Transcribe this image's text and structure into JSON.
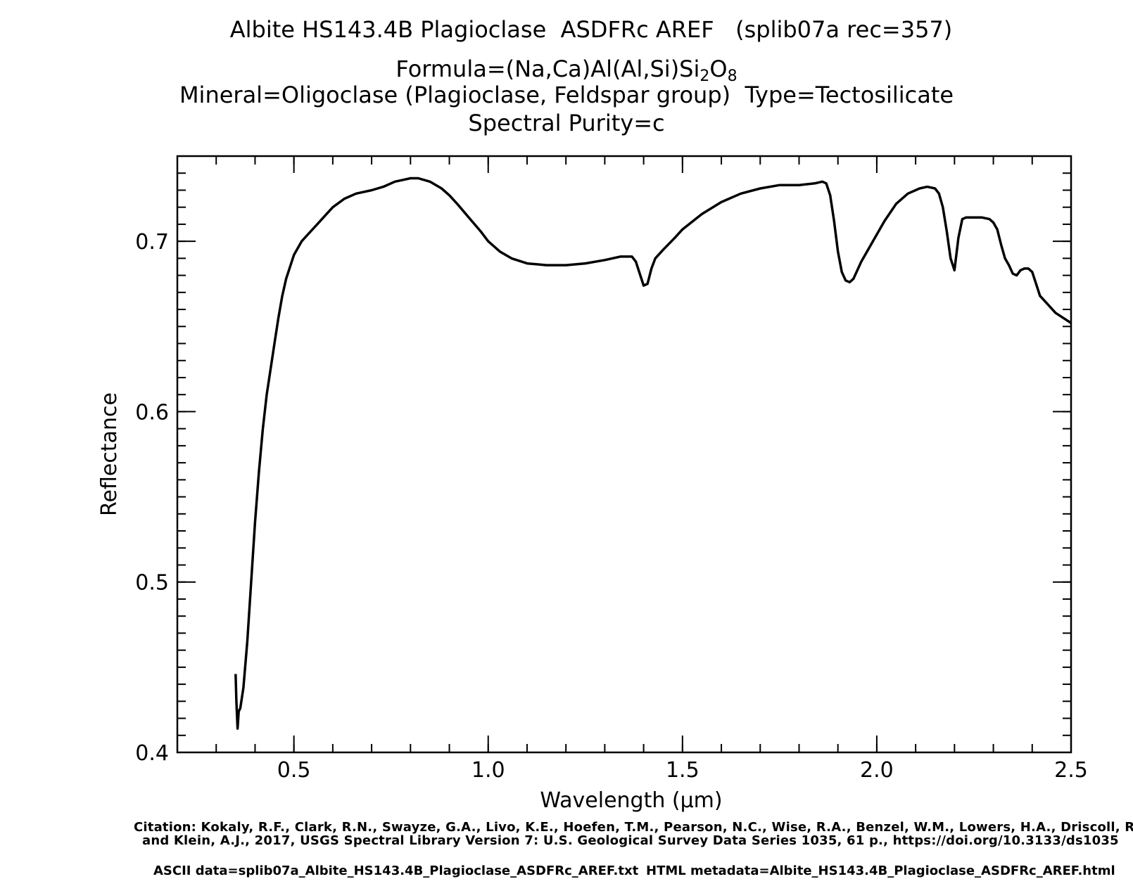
{
  "header": {
    "title_line1": "Albite HS143.4B Plagioclase  ASDFRc AREF   (splib07a rec=357)",
    "formula_prefix": "Formula=(Na,Ca)Al(Al,Si)Si",
    "formula_sub1": "2",
    "formula_mid": "O",
    "formula_sub2": "8",
    "mineral_line": "Mineral=Oligoclase (Plagioclase, Feldspar group)  Type=Tectosilicate",
    "purity_line": "Spectral Purity=c"
  },
  "footer": {
    "citation_line1": "Citation: Kokaly, R.F., Clark, R.N., Swayze, G.A., Livo, K.E., Hoefen, T.M., Pearson, N.C., Wise, R.A., Benzel, W.M., Lowers, H.A., Driscoll, R.L.,",
    "citation_line2": "and Klein, A.J., 2017, USGS Spectral Library Version 7: U.S. Geological Survey Data Series 1035, 61 p., https://doi.org/10.3133/ds1035",
    "ascii_data": "ASCII data=splib07a_Albite_HS143.4B_Plagioclase_ASDFRc_AREF.txt",
    "html_metadata": "HTML metadata=Albite_HS143.4B_Plagioclase_ASDFRc_AREF.html"
  },
  "chart_data": {
    "type": "line",
    "xlabel": "Wavelength (μm)",
    "ylabel": "Reflectance",
    "xlim": [
      0.2,
      2.5
    ],
    "ylim": [
      0.4,
      0.75
    ],
    "x_ticks": [
      0.5,
      1.0,
      1.5,
      2.0,
      2.5
    ],
    "x_tick_labels": [
      "0.5",
      "1.0",
      "1.5",
      "2.0",
      "2.5"
    ],
    "y_ticks": [
      0.4,
      0.5,
      0.6,
      0.7
    ],
    "y_tick_labels": [
      "0.4",
      "0.5",
      "0.6",
      "0.7"
    ],
    "grid": false,
    "line_color": "#000000",
    "series": [
      {
        "x": [
          0.35,
          0.352,
          0.355,
          0.358,
          0.362,
          0.37,
          0.38,
          0.39,
          0.4,
          0.41,
          0.42,
          0.43,
          0.44,
          0.45,
          0.46,
          0.47,
          0.48,
          0.5,
          0.52,
          0.54,
          0.56,
          0.58,
          0.6,
          0.63,
          0.66,
          0.7,
          0.73,
          0.76,
          0.78,
          0.8,
          0.82,
          0.85,
          0.88,
          0.9,
          0.92,
          0.95,
          0.98,
          1.0,
          1.03,
          1.06,
          1.1,
          1.15,
          1.2,
          1.25,
          1.3,
          1.34,
          1.37,
          1.38,
          1.39,
          1.4,
          1.41,
          1.42,
          1.43,
          1.45,
          1.48,
          1.5,
          1.55,
          1.6,
          1.65,
          1.7,
          1.75,
          1.8,
          1.84,
          1.86,
          1.87,
          1.88,
          1.89,
          1.9,
          1.91,
          1.92,
          1.93,
          1.94,
          1.96,
          1.99,
          2.02,
          2.05,
          2.08,
          2.11,
          2.13,
          2.15,
          2.16,
          2.17,
          2.18,
          2.19,
          2.2,
          2.21,
          2.22,
          2.23,
          2.25,
          2.27,
          2.29,
          2.3,
          2.31,
          2.32,
          2.33,
          2.34,
          2.35,
          2.36,
          2.37,
          2.38,
          2.39,
          2.4,
          2.41,
          2.42,
          2.44,
          2.46,
          2.48,
          2.5
        ],
        "y": [
          0.446,
          0.43,
          0.414,
          0.424,
          0.426,
          0.438,
          0.465,
          0.5,
          0.535,
          0.565,
          0.59,
          0.61,
          0.625,
          0.64,
          0.655,
          0.668,
          0.678,
          0.692,
          0.7,
          0.705,
          0.71,
          0.715,
          0.72,
          0.725,
          0.728,
          0.73,
          0.732,
          0.735,
          0.736,
          0.737,
          0.737,
          0.735,
          0.731,
          0.727,
          0.722,
          0.714,
          0.706,
          0.7,
          0.694,
          0.69,
          0.687,
          0.686,
          0.686,
          0.687,
          0.689,
          0.691,
          0.691,
          0.688,
          0.681,
          0.674,
          0.675,
          0.684,
          0.69,
          0.695,
          0.702,
          0.707,
          0.716,
          0.723,
          0.728,
          0.731,
          0.733,
          0.733,
          0.734,
          0.735,
          0.734,
          0.727,
          0.712,
          0.694,
          0.682,
          0.677,
          0.676,
          0.678,
          0.688,
          0.7,
          0.712,
          0.722,
          0.728,
          0.731,
          0.732,
          0.731,
          0.728,
          0.72,
          0.706,
          0.69,
          0.683,
          0.702,
          0.713,
          0.714,
          0.714,
          0.714,
          0.713,
          0.711,
          0.707,
          0.698,
          0.69,
          0.686,
          0.681,
          0.68,
          0.683,
          0.684,
          0.684,
          0.682,
          0.675,
          0.668,
          0.663,
          0.658,
          0.655,
          0.652
        ]
      }
    ]
  }
}
